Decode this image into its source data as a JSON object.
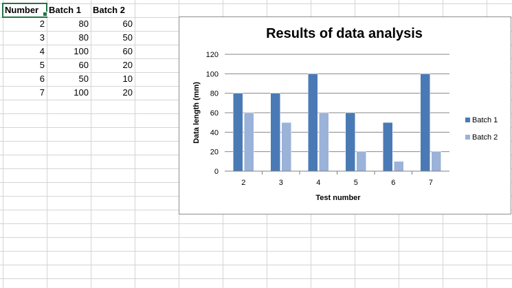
{
  "sheet": {
    "headers": [
      "Number",
      "Batch 1",
      "Batch 2"
    ],
    "rows": [
      [
        "2",
        "80",
        "60"
      ],
      [
        "3",
        "80",
        "50"
      ],
      [
        "4",
        "100",
        "60"
      ],
      [
        "5",
        "60",
        "20"
      ],
      [
        "6",
        "50",
        "10"
      ],
      [
        "7",
        "100",
        "20"
      ]
    ]
  },
  "colors": {
    "batch1": "#4a7ab5",
    "batch2": "#9bb2d9",
    "selection": "#217346"
  },
  "chart_data": {
    "type": "bar",
    "title": "Results of data analysis",
    "xlabel": "Test number",
    "ylabel": "Data length (mm)",
    "categories": [
      "2",
      "3",
      "4",
      "5",
      "6",
      "7"
    ],
    "series": [
      {
        "name": "Batch 1",
        "values": [
          80,
          80,
          100,
          60,
          50,
          100
        ]
      },
      {
        "name": "Batch 2",
        "values": [
          60,
          50,
          60,
          20,
          10,
          20
        ]
      }
    ],
    "ylim": [
      0,
      120
    ],
    "yticks": [
      0,
      20,
      40,
      60,
      80,
      100,
      120
    ],
    "grid": true,
    "legend": "right"
  }
}
